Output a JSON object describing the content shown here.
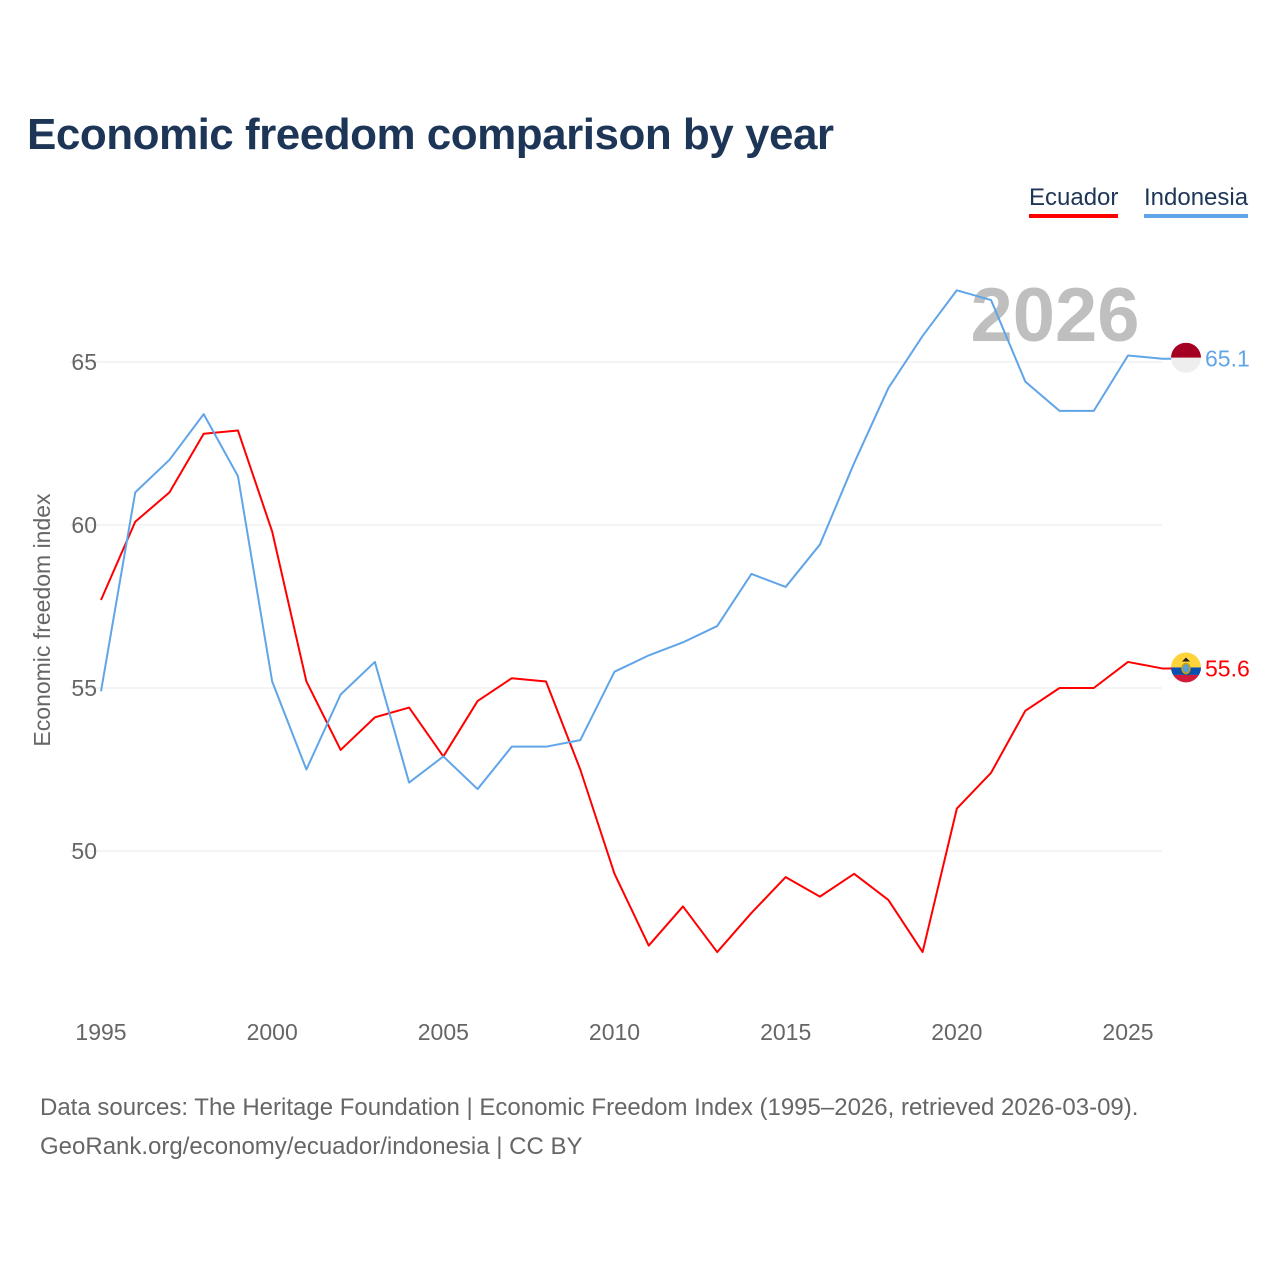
{
  "chart_data": {
    "type": "line",
    "title": "Economic freedom comparison by year",
    "ylabel": "Economic freedom index",
    "xlabel": "",
    "year_watermark": "2026",
    "xlim": [
      1995,
      2026
    ],
    "ylim": [
      46,
      68
    ],
    "xticks": [
      1995,
      2000,
      2005,
      2010,
      2015,
      2020,
      2025
    ],
    "yticks": [
      50,
      55,
      60,
      65
    ],
    "grid": "horizontal",
    "legend_position": "top-right",
    "x": [
      1995,
      1996,
      1997,
      1998,
      1999,
      2000,
      2001,
      2002,
      2003,
      2004,
      2005,
      2006,
      2007,
      2008,
      2009,
      2010,
      2011,
      2012,
      2013,
      2014,
      2015,
      2016,
      2017,
      2018,
      2019,
      2020,
      2021,
      2022,
      2023,
      2024,
      2025,
      2026
    ],
    "series": [
      {
        "name": "Ecuador",
        "color": "#ff0000",
        "end_label": "55.6",
        "flag": "ecuador-flag",
        "values": [
          57.7,
          60.1,
          61.0,
          62.8,
          62.9,
          59.8,
          55.2,
          53.1,
          54.1,
          54.4,
          52.9,
          54.6,
          55.3,
          55.2,
          52.5,
          49.3,
          47.1,
          48.3,
          46.9,
          48.1,
          49.2,
          48.6,
          49.3,
          48.5,
          46.9,
          51.3,
          52.4,
          54.3,
          55.0,
          55.0,
          55.8,
          55.6
        ]
      },
      {
        "name": "Indonesia",
        "color": "#60a5e8",
        "end_label": "65.1",
        "flag": "indonesia-flag",
        "values": [
          54.9,
          61.0,
          62.0,
          63.4,
          61.5,
          55.2,
          52.5,
          54.8,
          55.8,
          52.1,
          52.9,
          51.9,
          53.2,
          53.2,
          53.4,
          55.5,
          56.0,
          56.4,
          56.9,
          58.5,
          58.1,
          59.4,
          61.9,
          64.2,
          65.8,
          67.2,
          66.9,
          64.4,
          63.5,
          63.5,
          65.2,
          65.1
        ]
      }
    ]
  },
  "footer": {
    "line1": "Data sources: The Heritage Foundation | Economic Freedom Index (1995–2026, retrieved 2026-03-09).",
    "line2": "GeoRank.org/economy/ecuador/indonesia | CC BY"
  }
}
